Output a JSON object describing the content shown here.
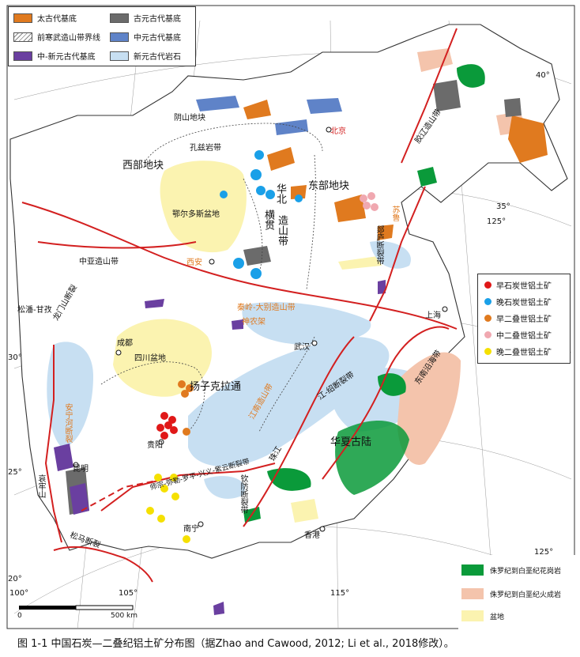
{
  "legend_top": {
    "items": [
      {
        "label": "太古代基底",
        "color": "#e07a1f"
      },
      {
        "label": "古元古代基底",
        "color": "#6b6b6b"
      },
      {
        "label": "前寒武造山带界线",
        "color": "#ffffff"
      },
      {
        "label": "中元古代基底",
        "color": "#5f83c8"
      },
      {
        "label": "中-新元古代基底",
        "color": "#6a3fa0"
      },
      {
        "label": "新元古代岩石",
        "color": "#c7dff2"
      }
    ]
  },
  "legend_right": {
    "items": [
      {
        "label": "早石炭世铝土矿",
        "color": "#e01818"
      },
      {
        "label": "晚石炭世铝土矿",
        "color": "#1aa0e8"
      },
      {
        "label": "早二叠世铝土矿",
        "color": "#e07a1f"
      },
      {
        "label": "中二叠世铝土矿",
        "color": "#f0a8b0"
      },
      {
        "label": "晚二叠世铝土矿",
        "color": "#f5e000"
      }
    ]
  },
  "legend_bottom_right": {
    "items": [
      {
        "label": "侏罗纪到白垩纪花岗岩",
        "color": "#0a9a3a"
      },
      {
        "label": "侏罗纪到白垩纪火成岩",
        "color": "#f4c4ac"
      },
      {
        "label": "盆地",
        "color": "#fbf3b0"
      }
    ]
  },
  "map_labels": {
    "xibu": "西部地块",
    "dongbu": "东部地块",
    "huabei": "华北",
    "hengguan": "横贯",
    "zaoshandai": "造山带",
    "ordos": "鄂尔多斯盆地",
    "yinshan": "阴山地块",
    "kongzi": "孔兹岩带",
    "beijing": "北京",
    "xian": "西安",
    "zhongya": "中亚造山带",
    "songpan": "松潘-甘孜",
    "longmen": "龙门山断裂",
    "chengdu": "成都",
    "sichuan": "四川盆地",
    "yangtze": "扬子克拉通",
    "guiyang": "贵阳",
    "kunming": "昆明",
    "nanning": "南宁",
    "xianggang": "香港",
    "wuhan": "武汉",
    "shanghai": "上海",
    "huaxia": "华夏古陆",
    "jiangshao": "江-绍断裂带",
    "tanlu": "郯庐断裂带",
    "sulu": "苏鲁",
    "jiaoliao": "胶辽造山带",
    "qinling": "秦岭-大别造山带",
    "shenning": "神农架",
    "jiangnan": "江南造山带",
    "xuefeng": "雪峰山断裂",
    "shizong": "师宗-弥勒-罗平-兴义-紫云断裂带",
    "anning": "安宁河断裂",
    "ailaoshan": "哀牢山",
    "songma": "松马断裂",
    "qinfang": "钦防断裂带",
    "zhujiang": "珠江",
    "dongnan": "东南沿海带",
    "lat40": "40°",
    "lat35": "35°",
    "lat30": "30°",
    "lat25": "25°",
    "lat20": "20°",
    "lon100": "100°",
    "lon105": "105°",
    "lon115": "115°",
    "lon125a": "125°",
    "lon125b": "125°"
  },
  "scale": {
    "zero": "0",
    "label": "500 km"
  },
  "caption": "图 1-1 中国石炭—二叠纪铝土矿分布图（据Zhao and Cawood, 2012; Li et al., 2018修改）。"
}
